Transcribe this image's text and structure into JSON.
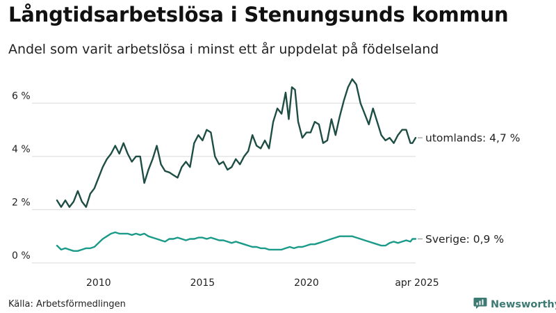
{
  "title": "Långtidsarbetslösa i Stenungsunds kommun",
  "subtitle": "Andel som varit arbetslösa i minst ett år uppdelat på födelseland",
  "source": "Källa: Arbetsförmedlingen",
  "brand": {
    "name": "Newsworthy",
    "icon": "newsworthy-logo-icon",
    "color": "#3d7a74"
  },
  "chart_data": {
    "type": "line",
    "title": "Långtidsarbetslösa i Stenungsunds kommun",
    "subtitle": "Andel som varit arbetslösa i minst ett år uppdelat på födelseland",
    "xlabel": "",
    "ylabel": "",
    "y_ticks": [
      0,
      2,
      4,
      6
    ],
    "y_tick_labels": [
      "0 %",
      "2 %",
      "4 %",
      "6 %"
    ],
    "ylim": [
      0,
      7
    ],
    "x_ticks": [
      2010,
      2015,
      2020,
      2025.25
    ],
    "x_tick_labels": [
      "2010",
      "2015",
      "2020",
      "apr 2025"
    ],
    "xlim": [
      2008.0,
      2025.25
    ],
    "grid": true,
    "series": [
      {
        "name": "utomlands",
        "end_label": "utomlands: 4,7 %",
        "color": "#1e4d44",
        "points": [
          [
            2008.0,
            2.35
          ],
          [
            2008.2,
            2.1
          ],
          [
            2008.4,
            2.35
          ],
          [
            2008.6,
            2.1
          ],
          [
            2008.8,
            2.3
          ],
          [
            2009.0,
            2.7
          ],
          [
            2009.2,
            2.3
          ],
          [
            2009.4,
            2.1
          ],
          [
            2009.6,
            2.6
          ],
          [
            2009.8,
            2.8
          ],
          [
            2010.0,
            3.2
          ],
          [
            2010.2,
            3.6
          ],
          [
            2010.4,
            3.9
          ],
          [
            2010.6,
            4.1
          ],
          [
            2010.8,
            4.4
          ],
          [
            2011.0,
            4.1
          ],
          [
            2011.2,
            4.5
          ],
          [
            2011.4,
            4.1
          ],
          [
            2011.6,
            3.8
          ],
          [
            2011.8,
            4.0
          ],
          [
            2012.0,
            4.0
          ],
          [
            2012.2,
            3.0
          ],
          [
            2012.4,
            3.5
          ],
          [
            2012.6,
            3.9
          ],
          [
            2012.8,
            4.4
          ],
          [
            2013.0,
            3.7
          ],
          [
            2013.2,
            3.45
          ],
          [
            2013.4,
            3.4
          ],
          [
            2013.6,
            3.3
          ],
          [
            2013.8,
            3.2
          ],
          [
            2014.0,
            3.6
          ],
          [
            2014.2,
            3.8
          ],
          [
            2014.4,
            3.6
          ],
          [
            2014.6,
            4.5
          ],
          [
            2014.8,
            4.8
          ],
          [
            2015.0,
            4.6
          ],
          [
            2015.2,
            5.0
          ],
          [
            2015.4,
            4.9
          ],
          [
            2015.6,
            4.0
          ],
          [
            2015.8,
            3.7
          ],
          [
            2016.0,
            3.8
          ],
          [
            2016.2,
            3.5
          ],
          [
            2016.4,
            3.6
          ],
          [
            2016.6,
            3.9
          ],
          [
            2016.8,
            3.7
          ],
          [
            2017.0,
            4.0
          ],
          [
            2017.2,
            4.2
          ],
          [
            2017.4,
            4.8
          ],
          [
            2017.6,
            4.4
          ],
          [
            2017.8,
            4.3
          ],
          [
            2018.0,
            4.6
          ],
          [
            2018.2,
            4.3
          ],
          [
            2018.4,
            5.3
          ],
          [
            2018.6,
            5.8
          ],
          [
            2018.8,
            5.6
          ],
          [
            2019.0,
            6.4
          ],
          [
            2019.15,
            5.4
          ],
          [
            2019.3,
            6.6
          ],
          [
            2019.45,
            6.5
          ],
          [
            2019.6,
            5.3
          ],
          [
            2019.8,
            4.7
          ],
          [
            2020.0,
            4.9
          ],
          [
            2020.2,
            4.9
          ],
          [
            2020.4,
            5.3
          ],
          [
            2020.6,
            5.2
          ],
          [
            2020.8,
            4.5
          ],
          [
            2021.0,
            4.6
          ],
          [
            2021.2,
            5.4
          ],
          [
            2021.4,
            4.8
          ],
          [
            2021.6,
            5.5
          ],
          [
            2021.8,
            6.1
          ],
          [
            2022.0,
            6.6
          ],
          [
            2022.2,
            6.9
          ],
          [
            2022.4,
            6.7
          ],
          [
            2022.6,
            6.0
          ],
          [
            2022.8,
            5.6
          ],
          [
            2023.0,
            5.2
          ],
          [
            2023.2,
            5.8
          ],
          [
            2023.4,
            5.3
          ],
          [
            2023.6,
            4.8
          ],
          [
            2023.8,
            4.6
          ],
          [
            2024.0,
            4.7
          ],
          [
            2024.2,
            4.5
          ],
          [
            2024.4,
            4.8
          ],
          [
            2024.6,
            5.0
          ],
          [
            2024.8,
            5.0
          ],
          [
            2025.0,
            4.5
          ],
          [
            2025.1,
            4.5
          ],
          [
            2025.25,
            4.7
          ]
        ]
      },
      {
        "name": "Sverige",
        "end_label": "Sverige: 0,9 %",
        "color": "#1a9a88",
        "points": [
          [
            2008.0,
            0.65
          ],
          [
            2008.2,
            0.5
          ],
          [
            2008.4,
            0.55
          ],
          [
            2008.6,
            0.5
          ],
          [
            2008.8,
            0.45
          ],
          [
            2009.0,
            0.45
          ],
          [
            2009.2,
            0.5
          ],
          [
            2009.4,
            0.55
          ],
          [
            2009.6,
            0.55
          ],
          [
            2009.8,
            0.6
          ],
          [
            2010.0,
            0.75
          ],
          [
            2010.2,
            0.9
          ],
          [
            2010.4,
            1.0
          ],
          [
            2010.6,
            1.1
          ],
          [
            2010.8,
            1.15
          ],
          [
            2011.0,
            1.1
          ],
          [
            2011.2,
            1.1
          ],
          [
            2011.4,
            1.1
          ],
          [
            2011.6,
            1.05
          ],
          [
            2011.8,
            1.1
          ],
          [
            2012.0,
            1.05
          ],
          [
            2012.2,
            1.1
          ],
          [
            2012.4,
            1.0
          ],
          [
            2012.6,
            0.95
          ],
          [
            2012.8,
            0.9
          ],
          [
            2013.0,
            0.85
          ],
          [
            2013.2,
            0.8
          ],
          [
            2013.4,
            0.9
          ],
          [
            2013.6,
            0.9
          ],
          [
            2013.8,
            0.95
          ],
          [
            2014.0,
            0.9
          ],
          [
            2014.2,
            0.85
          ],
          [
            2014.4,
            0.9
          ],
          [
            2014.6,
            0.9
          ],
          [
            2014.8,
            0.95
          ],
          [
            2015.0,
            0.95
          ],
          [
            2015.2,
            0.9
          ],
          [
            2015.4,
            0.95
          ],
          [
            2015.6,
            0.9
          ],
          [
            2015.8,
            0.85
          ],
          [
            2016.0,
            0.85
          ],
          [
            2016.2,
            0.8
          ],
          [
            2016.4,
            0.75
          ],
          [
            2016.6,
            0.8
          ],
          [
            2016.8,
            0.75
          ],
          [
            2017.0,
            0.7
          ],
          [
            2017.2,
            0.65
          ],
          [
            2017.4,
            0.6
          ],
          [
            2017.6,
            0.6
          ],
          [
            2017.8,
            0.55
          ],
          [
            2018.0,
            0.55
          ],
          [
            2018.2,
            0.5
          ],
          [
            2018.4,
            0.5
          ],
          [
            2018.6,
            0.5
          ],
          [
            2018.8,
            0.5
          ],
          [
            2019.0,
            0.55
          ],
          [
            2019.2,
            0.6
          ],
          [
            2019.4,
            0.55
          ],
          [
            2019.6,
            0.6
          ],
          [
            2019.8,
            0.6
          ],
          [
            2020.0,
            0.65
          ],
          [
            2020.2,
            0.7
          ],
          [
            2020.4,
            0.7
          ],
          [
            2020.6,
            0.75
          ],
          [
            2020.8,
            0.8
          ],
          [
            2021.0,
            0.85
          ],
          [
            2021.2,
            0.9
          ],
          [
            2021.4,
            0.95
          ],
          [
            2021.6,
            1.0
          ],
          [
            2021.8,
            1.0
          ],
          [
            2022.0,
            1.0
          ],
          [
            2022.2,
            1.0
          ],
          [
            2022.4,
            0.95
          ],
          [
            2022.6,
            0.9
          ],
          [
            2022.8,
            0.85
          ],
          [
            2023.0,
            0.8
          ],
          [
            2023.2,
            0.75
          ],
          [
            2023.4,
            0.7
          ],
          [
            2023.6,
            0.65
          ],
          [
            2023.8,
            0.65
          ],
          [
            2024.0,
            0.75
          ],
          [
            2024.2,
            0.8
          ],
          [
            2024.4,
            0.75
          ],
          [
            2024.6,
            0.8
          ],
          [
            2024.8,
            0.85
          ],
          [
            2025.0,
            0.8
          ],
          [
            2025.1,
            0.9
          ],
          [
            2025.25,
            0.9
          ]
        ]
      }
    ]
  }
}
